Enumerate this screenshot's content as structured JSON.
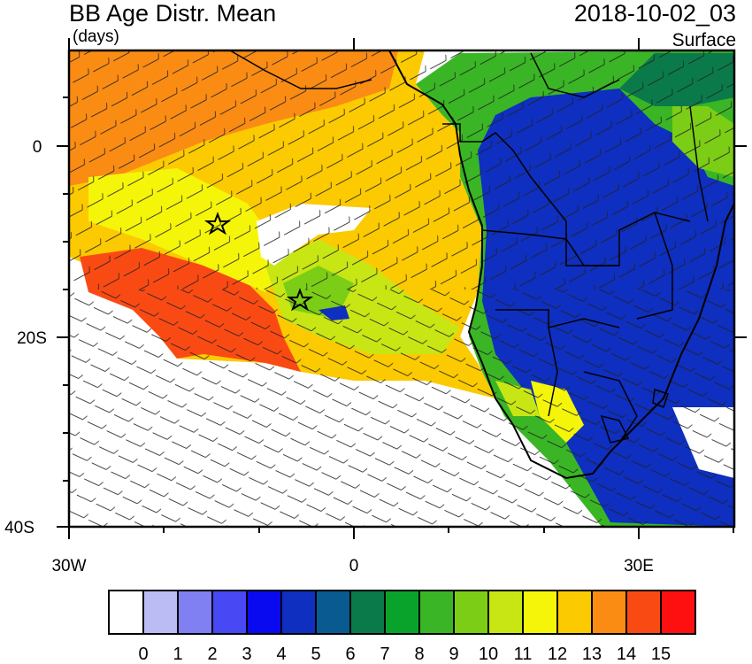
{
  "header": {
    "title": "BB Age Distr. Mean",
    "units": "(days)",
    "datetime": "2018-10-02_03",
    "level": "Surface"
  },
  "axes": {
    "lat_ticks": [
      {
        "label": "0",
        "lat": 0
      },
      {
        "label": "20S",
        "lat": -20
      },
      {
        "label": "40S",
        "lat": -40
      }
    ],
    "lon_ticks": [
      {
        "label": "30W",
        "lon": -30
      },
      {
        "label": "0",
        "lon": 0
      },
      {
        "label": "30E",
        "lon": 30
      }
    ],
    "lon_range": [
      -30,
      40
    ],
    "lat_range": [
      -40,
      10
    ]
  },
  "colorbar": {
    "labels": [
      "0",
      "1",
      "2",
      "3",
      "4",
      "5",
      "6",
      "7",
      "8",
      "9",
      "10",
      "11",
      "12",
      "13",
      "14",
      "15"
    ],
    "colors": [
      "#ffffff",
      "#bcbcf5",
      "#8080f2",
      "#4848f5",
      "#0a0af0",
      "#0e2fbf",
      "#0a5a92",
      "#0a7a4a",
      "#09a32c",
      "#3ab525",
      "#7ccd15",
      "#c8e614",
      "#f5f50a",
      "#fcca00",
      "#fa8c14",
      "#fa4a14",
      "#ff1010"
    ]
  },
  "map": {
    "ocean_age_color": "#ffffff",
    "land_age_color": "#0e2fbf",
    "markers": [
      {
        "name": "star",
        "lon": -14.4,
        "lat": -8.0
      },
      {
        "name": "star",
        "lon": -5.7,
        "lat": -16.0
      }
    ]
  }
}
